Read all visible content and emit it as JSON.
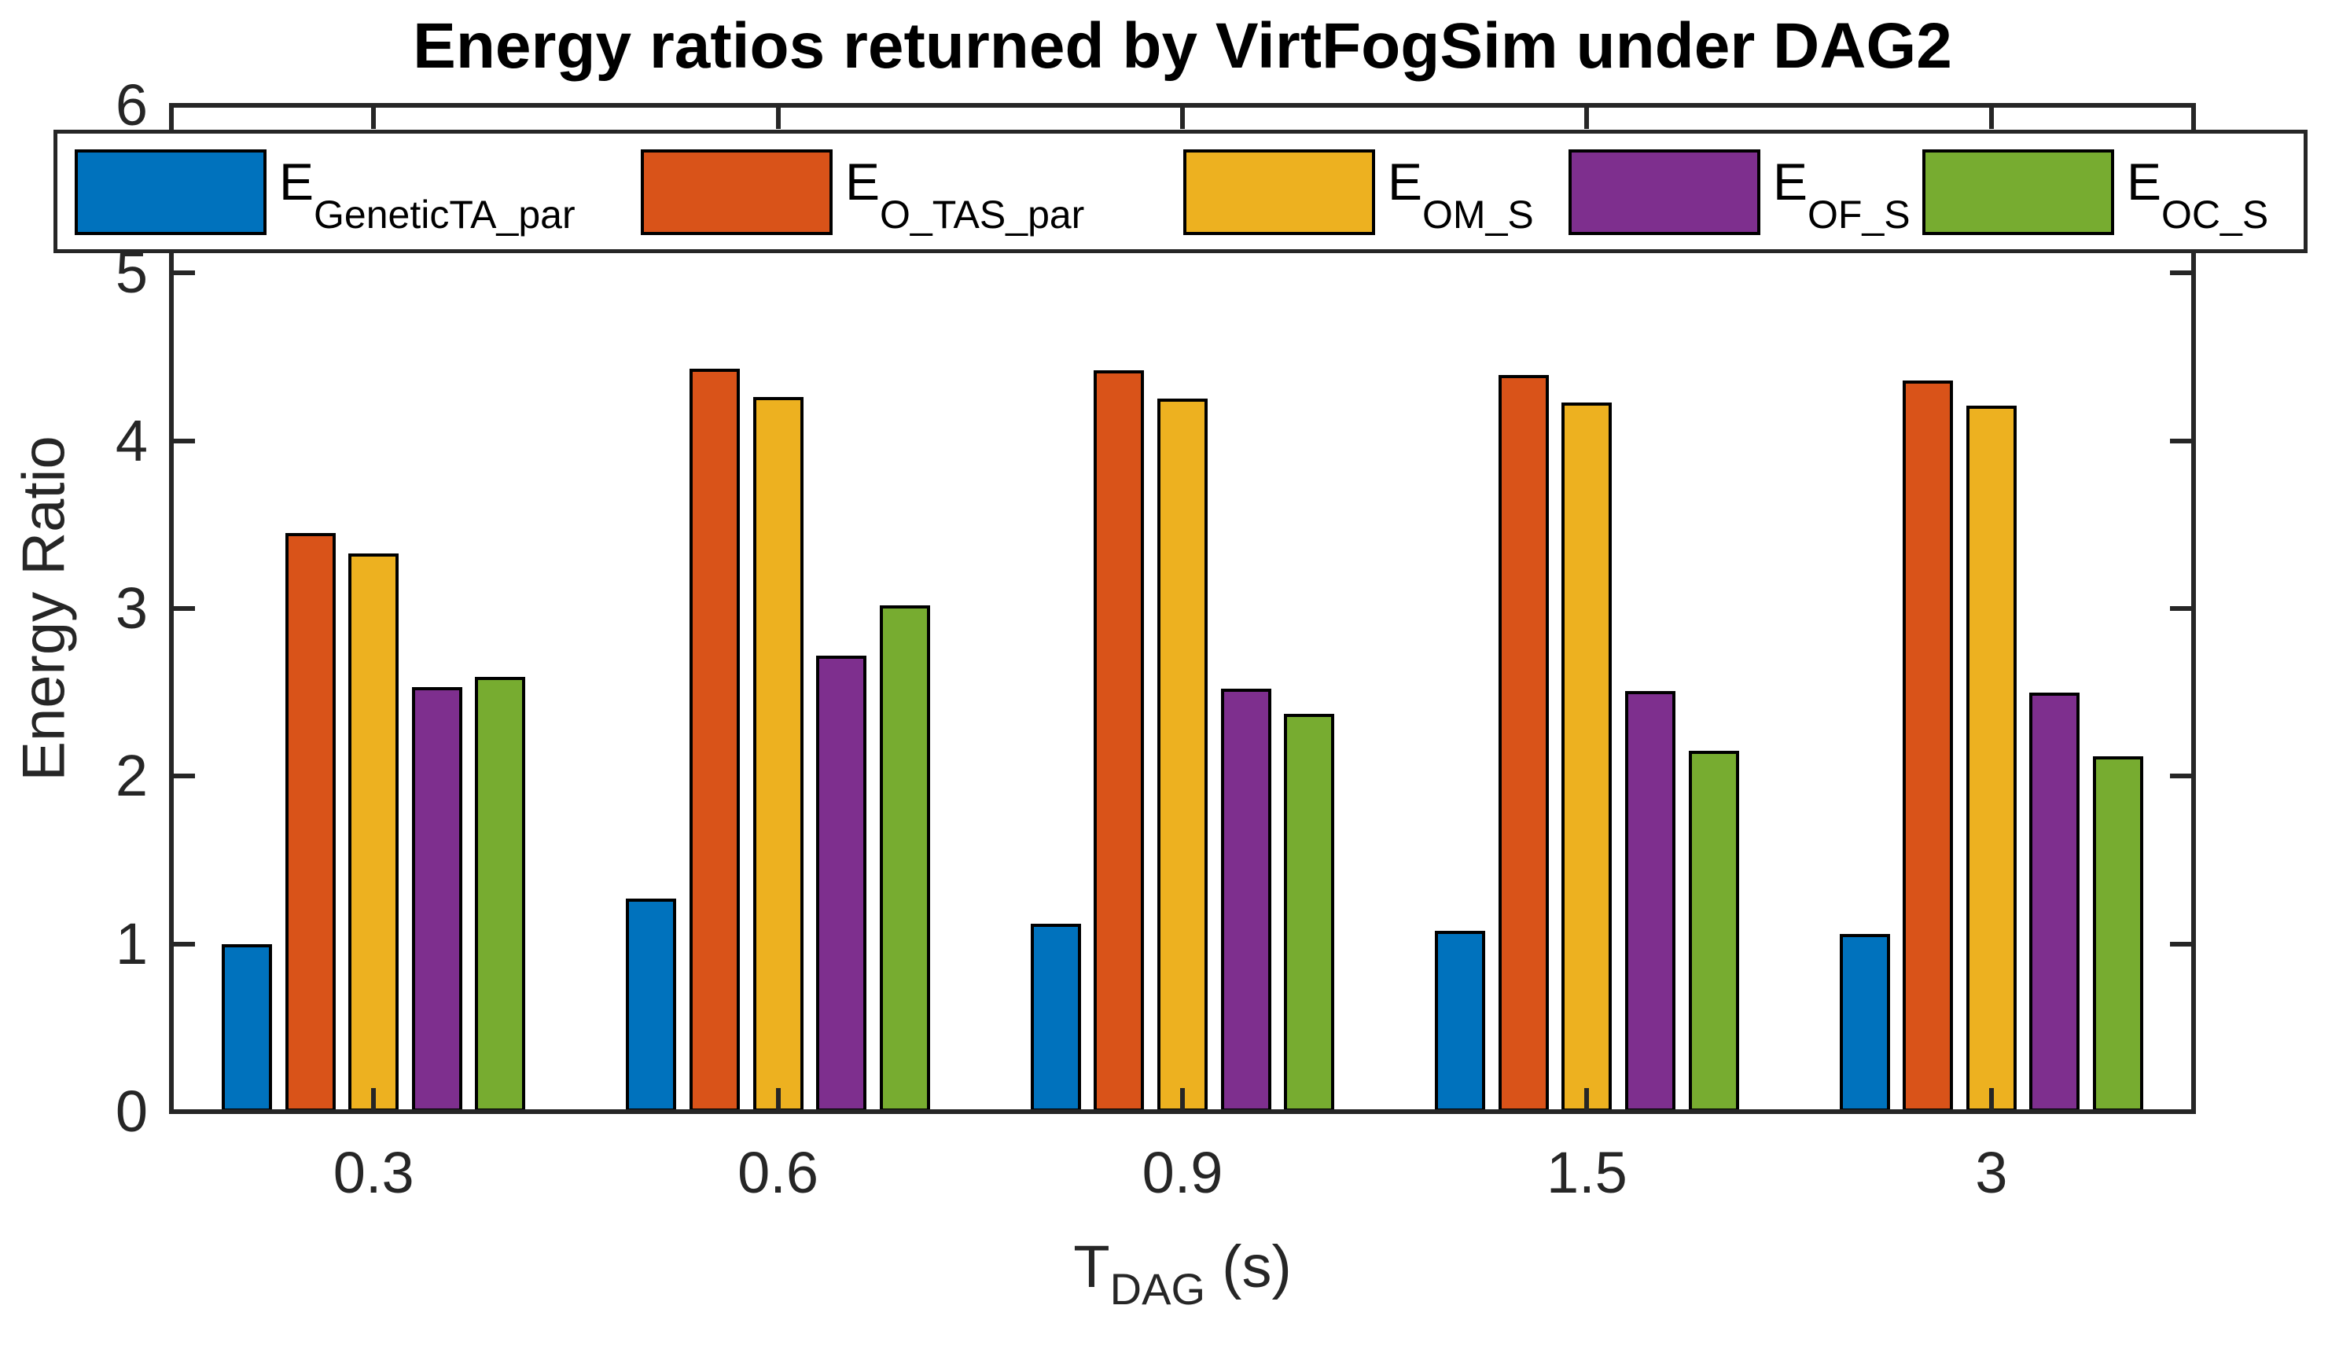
{
  "title": "Energy ratios returned by VirtFogSim under DAG2",
  "axes": {
    "ylabel": "Energy Ratio",
    "xlabel_main": "T",
    "xlabel_sub": "DAG",
    "xlabel_unit": " (s)",
    "ytick_labels": [
      "0",
      "1",
      "2",
      "3",
      "4",
      "5",
      "6"
    ]
  },
  "colors": {
    "axis": "#262626",
    "bar_edge": "#000000",
    "background": "#ffffff"
  },
  "chart_data": {
    "type": "bar",
    "title": "Energy ratios returned by VirtFogSim under DAG2",
    "categories": [
      "0.3",
      "0.6",
      "0.9",
      "1.5",
      "3"
    ],
    "series": [
      {
        "name": "E_GeneticTA_par",
        "label_main": "E",
        "label_sub": "GeneticTA_par",
        "color": "#0072BD",
        "values": [
          1.0,
          1.27,
          1.12,
          1.08,
          1.06
        ]
      },
      {
        "name": "E_O_TAS_par",
        "label_main": "E",
        "label_sub": "O_TAS_par",
        "color": "#D95319",
        "values": [
          3.45,
          4.43,
          4.42,
          4.39,
          4.36
        ]
      },
      {
        "name": "E_OM_S",
        "label_main": "E",
        "label_sub": "OM_S",
        "color": "#EDB120",
        "values": [
          3.33,
          4.26,
          4.25,
          4.23,
          4.21
        ]
      },
      {
        "name": "E_OF_S",
        "label_main": "E",
        "label_sub": "OF_S",
        "color": "#7E2F8E",
        "values": [
          2.53,
          2.72,
          2.52,
          2.51,
          2.5
        ]
      },
      {
        "name": "E_OC_S",
        "label_main": "E",
        "label_sub": "OC_S",
        "color": "#77AC30",
        "values": [
          2.59,
          3.02,
          2.37,
          2.15,
          2.12
        ]
      }
    ],
    "xlabel": "T_DAG (s)",
    "ylabel": "Energy Ratio",
    "ylim": [
      0,
      6
    ],
    "yticks": [
      0,
      1,
      2,
      3,
      4,
      5,
      6
    ],
    "grid": false,
    "legend_position": "top-horizontal"
  }
}
